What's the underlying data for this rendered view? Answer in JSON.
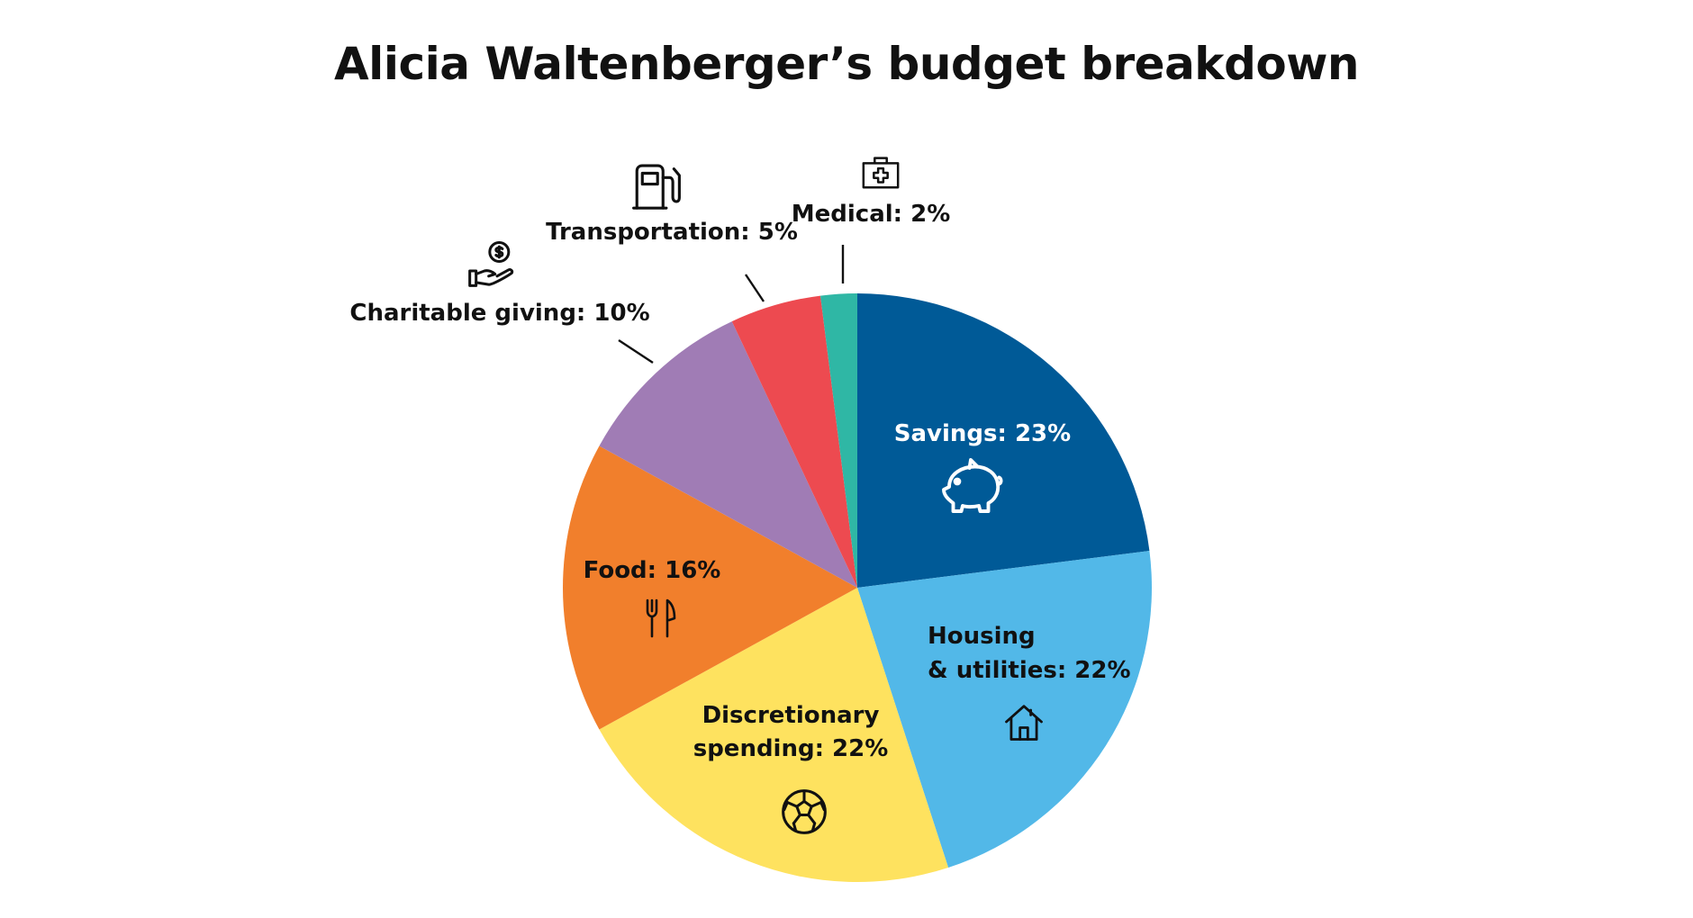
{
  "chart_data": {
    "type": "pie",
    "title": "Alicia Waltenberger’s budget breakdown",
    "start": "12 o'clock",
    "direction": "clockwise",
    "slices": [
      {
        "label": "Savings",
        "value": 23,
        "display": "Savings: 23%",
        "color": "#005a97",
        "text_color": "#ffffff",
        "icon": "piggy-bank-icon"
      },
      {
        "label": "Housing & utilities",
        "value": 22,
        "display": [
          "Housing",
          "& utilities: 22%"
        ],
        "color": "#52b8e8",
        "text_color": "#111111",
        "icon": "house-icon"
      },
      {
        "label": "Discretionary spending",
        "value": 22,
        "display": [
          "Discretionary",
          "spending: 22%"
        ],
        "color": "#fee25f",
        "text_color": "#111111",
        "icon": "soccer-ball-icon"
      },
      {
        "label": "Food",
        "value": 16,
        "display": "Food: 16%",
        "color": "#f17f2c",
        "text_color": "#111111",
        "icon": "fork-knife-icon"
      },
      {
        "label": "Charitable giving",
        "value": 10,
        "display": "Charitable giving: 10%",
        "color": "#a07cb5",
        "text_color": "#111111",
        "icon": "hand-coin-icon"
      },
      {
        "label": "Transportation",
        "value": 5,
        "display": "Transportation: 5%",
        "color": "#ed4a50",
        "text_color": "#111111",
        "icon": "gas-pump-icon"
      },
      {
        "label": "Medical",
        "value": 2,
        "display": "Medical: 2%",
        "color": "#2fb7a5",
        "text_color": "#111111",
        "icon": "first-aid-kit-icon"
      }
    ]
  }
}
